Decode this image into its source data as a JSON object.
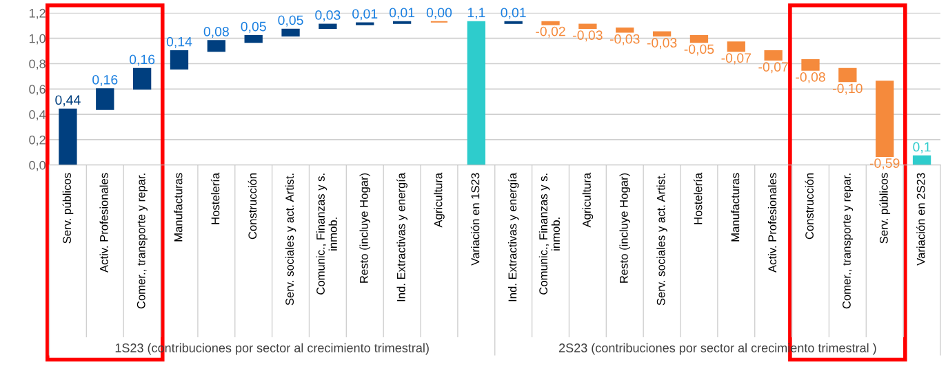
{
  "chart_data": {
    "type": "bar",
    "categories": [
      "Serv. públicos",
      "Activ. Profesionales",
      "Comer., transporte y repar.",
      "Manufacturas",
      "Hostelería",
      "Construcción",
      "Serv. sociales y act. Artist.",
      "Comunic., Finanzas y s.\ninmob.",
      "Resto (incluye Hogar)",
      "Ind. Extractivas y energía",
      "Agricultura",
      "Variación en 1S23",
      "Ind. Extractivas y energía",
      "Comunic., Finanzas y s.\ninmob.",
      "Agricultura",
      "Resto (incluye Hogar)",
      "Serv. sociales y act. Artist.",
      "Hostelería",
      "Manufacturas",
      "Activ. Profesionales",
      "Construcción",
      "Comer., transporte y repar.",
      "Serv. públicos",
      "Variación en 2S23"
    ],
    "values": [
      0.44,
      0.16,
      0.16,
      0.14,
      0.08,
      0.05,
      0.05,
      0.03,
      0.01,
      0.01,
      0.0,
      1.13,
      0.01,
      -0.02,
      -0.03,
      -0.03,
      -0.03,
      -0.05,
      -0.07,
      -0.07,
      -0.08,
      -0.1,
      -0.59,
      0.07
    ],
    "base": [
      0,
      0.44,
      0.6,
      0.76,
      0.9,
      0.97,
      1.02,
      1.08,
      1.11,
      1.12,
      1.13,
      0,
      1.12,
      1.13,
      1.11,
      1.08,
      1.05,
      1.02,
      0.97,
      0.9,
      0.83,
      0.76,
      0.66,
      0
    ],
    "colors": [
      "#003f7f",
      "#003f7f",
      "#003f7f",
      "#003f7f",
      "#003f7f",
      "#003f7f",
      "#003f7f",
      "#003f7f",
      "#003f7f",
      "#003f7f",
      "#f58a3c",
      "#2ecccc",
      "#003f7f",
      "#f58a3c",
      "#f58a3c",
      "#f58a3c",
      "#f58a3c",
      "#f58a3c",
      "#f58a3c",
      "#f58a3c",
      "#f58a3c",
      "#f58a3c",
      "#f58a3c",
      "#2ecccc"
    ],
    "value_labels": [
      "0,44",
      "0,16",
      "0,16",
      "0,14",
      "0,08",
      "0,05",
      "0,05",
      "0,03",
      "0,01",
      "0,01",
      "0,00",
      "1,1",
      "0,01",
      "-0,02",
      "-0,03",
      "-0,03",
      "-0,03",
      "-0,05",
      "-0,07",
      "-0,07",
      "-0,08",
      "-0,10",
      "-0,59",
      "0,1"
    ],
    "ylim": [
      0,
      1.2
    ],
    "yticks": [
      {
        "value": 0,
        "label": "0,0"
      },
      {
        "value": 0.2,
        "label": "0,2"
      },
      {
        "value": 0.4,
        "label": "0,4"
      },
      {
        "value": 0.6,
        "label": "0,6"
      },
      {
        "value": 0.8,
        "label": "0,8"
      },
      {
        "value": 1.0,
        "label": "1,0"
      },
      {
        "value": 1.2,
        "label": "1,2"
      }
    ],
    "grid": "y",
    "annotations": [
      "1S23 (contribuciones por sector al crecimiento trimestral)",
      "2S23 (contribuciones por sector al crecimiento trimestral )"
    ]
  }
}
